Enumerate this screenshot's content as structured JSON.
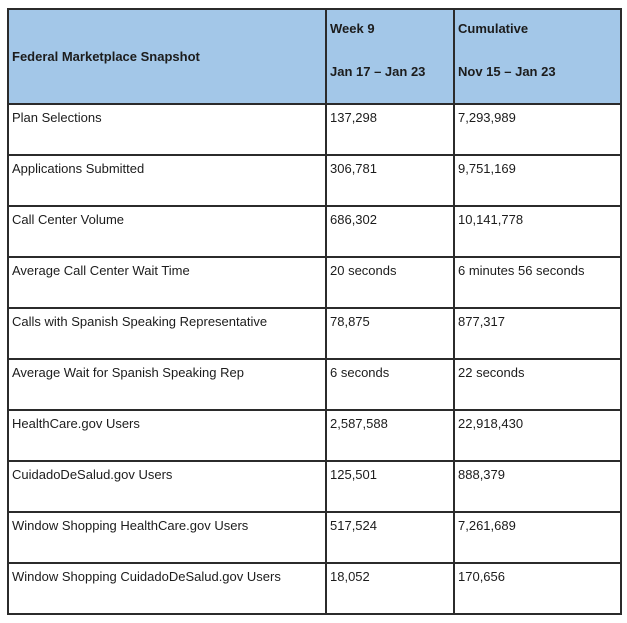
{
  "colors": {
    "header_bg": "#a3c7e8",
    "border": "#2b2b2b",
    "text": "#1c1c1c",
    "page_bg": "#ffffff"
  },
  "table": {
    "title": "Federal Marketplace Snapshot",
    "columns": [
      {
        "line1": "Week 9",
        "line2": "Jan 17 – Jan 23"
      },
      {
        "line1": "Cumulative",
        "line2": "Nov 15 – Jan 23"
      }
    ],
    "rows": [
      {
        "label": "Plan Selections",
        "week9": "137,298",
        "cumulative": "7,293,989"
      },
      {
        "label": "Applications Submitted",
        "week9": "306,781",
        "cumulative": "9,751,169"
      },
      {
        "label": "Call Center Volume",
        "week9": "686,302",
        "cumulative": "10,141,778"
      },
      {
        "label": "Average Call Center Wait Time",
        "week9": "20 seconds",
        "cumulative": "6 minutes 56 seconds"
      },
      {
        "label": "Calls with Spanish Speaking Representative",
        "week9": "78,875",
        "cumulative": "877,317"
      },
      {
        "label": "Average Wait for Spanish Speaking Rep",
        "week9": "6 seconds",
        "cumulative": "22 seconds"
      },
      {
        "label": "HealthCare.gov Users",
        "week9": "2,587,588",
        "cumulative": "22,918,430"
      },
      {
        "label": "CuidadoDeSalud.gov Users",
        "week9": "125,501",
        "cumulative": "888,379"
      },
      {
        "label": "Window Shopping HealthCare.gov Users",
        "week9": "517,524",
        "cumulative": "7,261,689"
      },
      {
        "label": "Window Shopping CuidadoDeSalud.gov Users",
        "week9": "18,052",
        "cumulative": "170,656"
      }
    ]
  }
}
